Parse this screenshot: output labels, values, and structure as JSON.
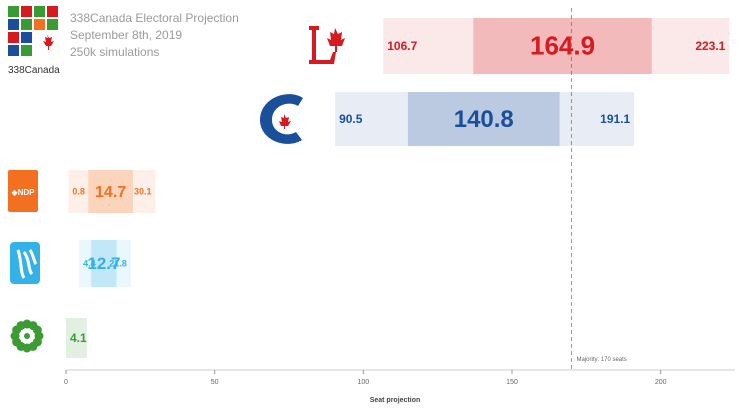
{
  "header": {
    "brand": "338Canada",
    "title": "338Canada Electoral Projection",
    "date": "September 8th, 2019",
    "simulations": "250k simulations"
  },
  "colors": {
    "lpc": "#d71920",
    "cpc": "#1a4f9c",
    "ndp": "#f37021",
    "bq": "#33b2e8",
    "gpc": "#3d9b35",
    "grid": "#888888",
    "logo_green": "#3a9b35",
    "logo_red": "#d71920",
    "logo_blue": "#1a4f9c",
    "logo_orange": "#f37021"
  },
  "chart_data": {
    "type": "bar",
    "orientation": "horizontal",
    "xlabel": "Seat projection",
    "xlim": [
      0,
      225
    ],
    "xticks": [
      0,
      50,
      100,
      150,
      200
    ],
    "majority": {
      "value": 170,
      "label": "Majority: 170 seats"
    },
    "series": [
      {
        "party": "LPC",
        "icon": "liberal-logo-icon",
        "low": 106.7,
        "q1": 137,
        "value": 164.9,
        "q3": 197,
        "high": 223.1,
        "color": "#d71920"
      },
      {
        "party": "CPC",
        "icon": "conservative-logo-icon",
        "low": 90.5,
        "q1": 115,
        "value": 140.8,
        "q3": 166,
        "high": 191.1,
        "color": "#1a4f9c"
      },
      {
        "party": "NDP",
        "icon": "ndp-logo-icon",
        "low": 0.8,
        "q1": 7.5,
        "value": 14.7,
        "q3": 22.5,
        "high": 30.1,
        "color": "#f37021"
      },
      {
        "party": "BQ",
        "icon": "bloc-logo-icon",
        "low": 4.4,
        "q1": 8.5,
        "value": 12.7,
        "q3": 17,
        "high": 21.8,
        "color": "#33b2e8"
      },
      {
        "party": "GPC",
        "icon": "green-logo-icon",
        "low": null,
        "q1": null,
        "value": 4.1,
        "q3": null,
        "high": 7,
        "color": "#3d9b35"
      }
    ]
  }
}
